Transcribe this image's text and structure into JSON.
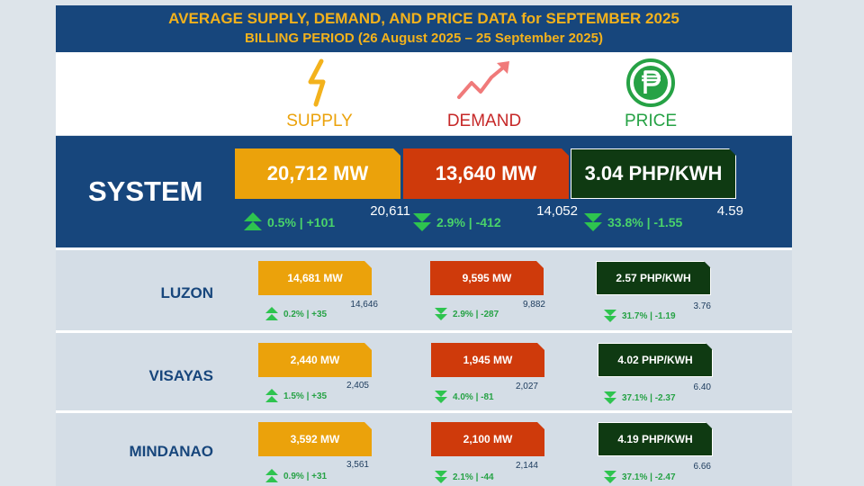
{
  "header": {
    "title": "AVERAGE SUPPLY, DEMAND, AND PRICE DATA for SEPTEMBER 2025",
    "subtitle": "BILLING PERIOD (26 August 2025 – 25 September 2025)"
  },
  "columns": {
    "supply": {
      "label": "SUPPLY",
      "icon": "lightning-bolt-icon",
      "color": "#eba20b"
    },
    "demand": {
      "label": "DEMAND",
      "icon": "trend-up-icon",
      "color": "#cf3a0b"
    },
    "price": {
      "label": "PRICE",
      "icon": "peso-coin-icon",
      "color": "#26a245"
    }
  },
  "system": {
    "label": "SYSTEM",
    "supply": {
      "value": "20,712 MW",
      "previous": "20,611",
      "change": "0.5% | +101",
      "direction": "up"
    },
    "demand": {
      "value": "13,640 MW",
      "previous": "14,052",
      "change": "2.9% | -412",
      "direction": "down"
    },
    "price": {
      "value": "3.04 PHP/KWH",
      "previous": "4.59",
      "change": "33.8% | -1.55",
      "direction": "down"
    }
  },
  "regions": [
    {
      "label": "LUZON",
      "supply": {
        "value": "14,681 MW",
        "previous": "14,646",
        "change": "0.2% | +35",
        "direction": "up"
      },
      "demand": {
        "value": "9,595 MW",
        "previous": "9,882",
        "change": "2.9% | -287",
        "direction": "down"
      },
      "price": {
        "value": "2.57 PHP/KWH",
        "previous": "3.76",
        "change": "31.7% | -1.19",
        "direction": "down"
      }
    },
    {
      "label": "VISAYAS",
      "supply": {
        "value": "2,440 MW",
        "previous": "2,405",
        "change": "1.5% | +35",
        "direction": "up"
      },
      "demand": {
        "value": "1,945 MW",
        "previous": "2,027",
        "change": "4.0% | -81",
        "direction": "down"
      },
      "price": {
        "value": "4.02 PHP/KWH",
        "previous": "6.40",
        "change": "37.1% | -2.37",
        "direction": "down"
      }
    },
    {
      "label": "MINDANAO",
      "supply": {
        "value": "3,592 MW",
        "previous": "3,561",
        "change": "0.9% | +31",
        "direction": "up"
      },
      "demand": {
        "value": "2,100 MW",
        "previous": "2,144",
        "change": "2.1% | -44",
        "direction": "down"
      },
      "price": {
        "value": "4.19 PHP/KWH",
        "previous": "6.66",
        "change": "37.1% | -2.47",
        "direction": "down"
      }
    }
  ]
}
